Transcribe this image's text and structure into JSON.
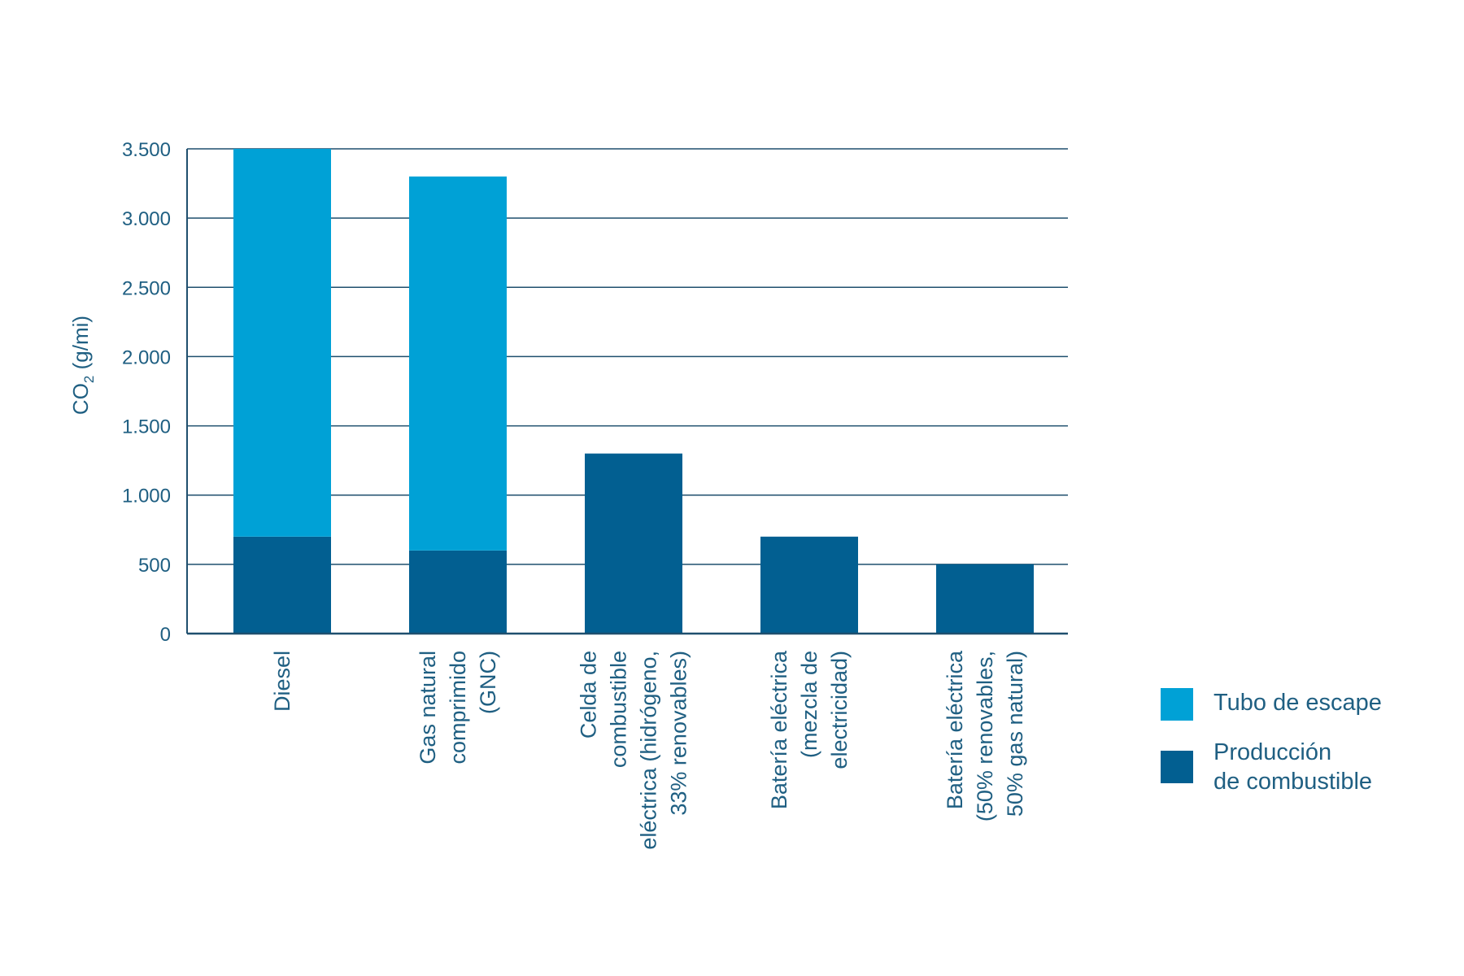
{
  "chart_data": {
    "type": "bar",
    "stacked": true,
    "ylabel_main": "CO",
    "ylabel_sub": "2",
    "ylabel_rest": " (g/mi)",
    "ylim": [
      0,
      3500
    ],
    "yticks": [
      0,
      500,
      1000,
      1500,
      2000,
      2500,
      3000,
      3500
    ],
    "ytick_labels": [
      "0",
      "500",
      "1.000",
      "1.500",
      "2.000",
      "2.500",
      "3.000",
      "3.500"
    ],
    "grid": true,
    "legend_position": "right",
    "categories": [
      [
        "Diesel"
      ],
      [
        "Gas  natural",
        "comprimido",
        "(GNC)"
      ],
      [
        "Celda de",
        "combustible",
        "eléctrica (hidrógeno,",
        "33% renovables)"
      ],
      [
        "Batería eléctrica",
        "(mezcla de",
        "electricidad)"
      ],
      [
        "Batería eléctrica",
        "(50% renovables,",
        "50% gas natural)"
      ]
    ],
    "series": [
      {
        "name": "Producción de combustible",
        "legend_lines": [
          "Producción",
          "de combustible"
        ],
        "color": "#025f91",
        "values": [
          700,
          600,
          1300,
          700,
          500
        ]
      },
      {
        "name": "Tubo de escape",
        "legend_lines": [
          "Tubo de escape"
        ],
        "color": "#00a1d6",
        "values": [
          2800,
          2700,
          0,
          0,
          0
        ]
      }
    ],
    "colors": {
      "text": "#1f5f82",
      "grid": "#1f4f6e"
    }
  }
}
